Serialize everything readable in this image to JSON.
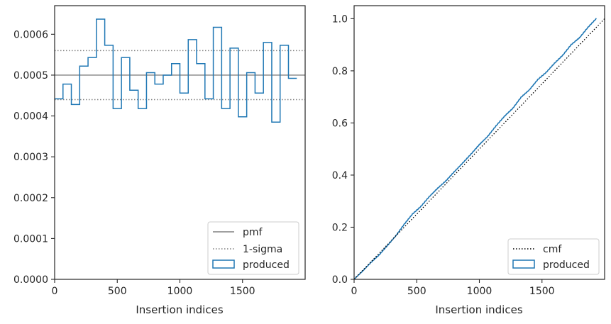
{
  "chart_data": [
    {
      "type": "step",
      "xlabel": "Insertion indices",
      "ylabel": "",
      "xlim": [
        0,
        2000
      ],
      "ylim": [
        0,
        0.00067
      ],
      "xticks": [
        0,
        500,
        1000,
        1500
      ],
      "xtick_labels": [
        "0",
        "500",
        "1000",
        "1500"
      ],
      "yticks": [
        0,
        0.0001,
        0.0002,
        0.0003,
        0.0004,
        0.0005,
        0.0006
      ],
      "ytick_labels": [
        "0.0000",
        "0.0001",
        "0.0002",
        "0.0003",
        "0.0004",
        "0.0005",
        "0.0006"
      ],
      "pmf_value": 0.0005,
      "sigma_values": [
        0.00044,
        0.00056
      ],
      "bin_width": 66.67,
      "hist_values": [
        0.000442,
        0.000478,
        0.000428,
        0.000522,
        0.000543,
        0.000637,
        0.000573,
        0.000418,
        0.000543,
        0.000463,
        0.000418,
        0.000506,
        0.000478,
        0.0005,
        0.000528,
        0.000456,
        0.000587,
        0.000528,
        0.000442,
        0.000617,
        0.000418,
        0.000566,
        0.000398,
        0.000506,
        0.000456,
        0.00058,
        0.000385,
        0.000573,
        0.000492
      ],
      "legend": [
        {
          "label": "pmf",
          "style": "solid",
          "color": "#808080"
        },
        {
          "label": "1-sigma",
          "style": "dotted",
          "color": "#808080"
        },
        {
          "label": "produced",
          "style": "box",
          "color": "#1f77b4"
        }
      ],
      "legend_position": "lower-right"
    },
    {
      "type": "line",
      "xlabel": "Insertion indices",
      "ylabel": "",
      "xlim": [
        0,
        2000
      ],
      "ylim": [
        0,
        1.05
      ],
      "xticks": [
        0,
        500,
        1000,
        1500
      ],
      "xtick_labels": [
        "0",
        "500",
        "1000",
        "1500"
      ],
      "yticks": [
        0,
        0.2,
        0.4,
        0.6,
        0.8,
        1.0
      ],
      "ytick_labels": [
        "0.0",
        "0.2",
        "0.4",
        "0.6",
        "0.8",
        "1.0"
      ],
      "cmf": {
        "x": [
          0,
          2000
        ],
        "y": [
          0,
          1.0
        ],
        "color": "#000000",
        "style": "dotted"
      },
      "legend": [
        {
          "label": "cmf",
          "style": "dotted",
          "color": "#000000"
        },
        {
          "label": "produced",
          "style": "box",
          "color": "#1f77b4"
        }
      ],
      "legend_position": "lower-right"
    }
  ]
}
